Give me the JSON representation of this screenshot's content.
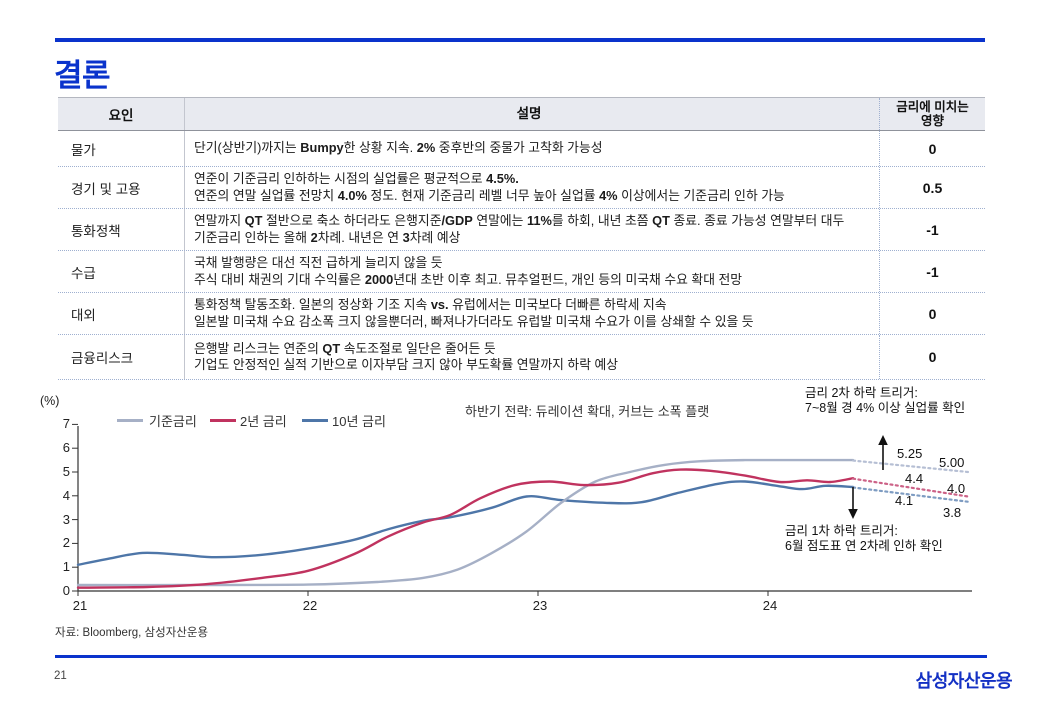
{
  "page": {
    "title": "결론",
    "page_number": "21",
    "logo_text": "삼성자산운용",
    "source": "자료: Bloomberg, 삼성자산운용",
    "accent_color": "#0a33cc"
  },
  "table": {
    "col_headers": {
      "factor": "요인",
      "description": "설명",
      "effect_line1": "금리에 미치는",
      "effect_line2": "영향"
    },
    "rows": [
      {
        "factor": "물가",
        "lines": [
          "단기(상반기)까지는 **Bumpy**한 상황 지속. **2%** 중후반의 중물가 고착화 가능성"
        ],
        "effect": "0"
      },
      {
        "factor": "경기 및 고용",
        "lines": [
          "연준이 기준금리 인하하는 시점의 실업률은 평균적으로 **4.5%.**",
          "연준의 연말 실업률 전망치 **4.0%** 정도.  현재 기준금리 레벨 너무 높아 실업률 **4%** 이상에서는 기준금리 인하 가능"
        ],
        "effect": "0.5"
      },
      {
        "factor": "통화정책",
        "lines": [
          "연말까지 **QT** 절반으로 축소 하더라도 은행지준**/GDP** 연말에는 **11%**를 하회, 내년 초쯤 **QT** 종료. 종료 가능성 연말부터 대두",
          "기준금리 인하는 올해 **2**차례. 내년은 연 **3**차례 예상"
        ],
        "effect": "-1"
      },
      {
        "factor": "수급",
        "lines": [
          "국채 발행량은 대선 직전 급하게 늘리지 않을 듯",
          "주식 대비 채권의 기대 수익률은 **2000**년대 초반 이후 최고. 뮤추얼펀드, 개인 등의 미국채 수요 확대 전망"
        ],
        "effect": "-1"
      },
      {
        "factor": "대외",
        "lines": [
          "통화정책 탈동조화. 일본의 정상화 기조 지속 **vs.** 유럽에서는 미국보다 더빠른 하락세 지속",
          "일본발 미국채 수요 감소폭 크지 않을뿐더러, 빠져나가더라도 유럽발 미국채 수요가 이를 상쇄할 수 있을 듯"
        ],
        "effect": "0"
      },
      {
        "factor": "금융리스크",
        "lines": [
          "은행발 리스크는 연준의 **QT** 속도조절로 일단은 줄어든 듯",
          "기업도 안정적인 실적 기반으로 이자부담 크지 않아 부도확률 연말까지 하락 예상"
        ],
        "effect": "0"
      }
    ]
  },
  "chart_data": {
    "type": "line",
    "unit_label": "(%)",
    "note": "하반기 전략: 듀레이션 확대, 커브는 소폭 플랫",
    "ylim": [
      0,
      7
    ],
    "y_ticks": [
      "0",
      "1",
      "2",
      "3",
      "4",
      "5",
      "6",
      "7"
    ],
    "x_ticks": [
      "21",
      "22",
      "23",
      "24"
    ],
    "legend_position": "top-left",
    "series": [
      {
        "name": "기준금리",
        "color": "#a6b0c6",
        "proj_color": "#b6bfd4",
        "points": [
          [
            21.0,
            0.25
          ],
          [
            21.5,
            0.25
          ],
          [
            22.0,
            0.27
          ],
          [
            22.3,
            0.38
          ],
          [
            22.5,
            0.55
          ],
          [
            22.65,
            0.9
          ],
          [
            22.8,
            1.6
          ],
          [
            22.95,
            2.5
          ],
          [
            23.1,
            3.7
          ],
          [
            23.25,
            4.6
          ],
          [
            23.4,
            5.0
          ],
          [
            23.55,
            5.3
          ],
          [
            23.7,
            5.45
          ],
          [
            23.9,
            5.5
          ],
          [
            24.1,
            5.5
          ],
          [
            24.37,
            5.5
          ]
        ],
        "projection": [
          [
            24.37,
            5.48
          ],
          [
            24.87,
            5.0
          ]
        ],
        "label_mid": "5.25",
        "label_end": "5.00"
      },
      {
        "name": "2년 금리",
        "color": "#c0335f",
        "proj_color": "#cc6287",
        "points": [
          [
            21.0,
            0.14
          ],
          [
            21.3,
            0.17
          ],
          [
            21.55,
            0.28
          ],
          [
            21.8,
            0.55
          ],
          [
            22.0,
            0.85
          ],
          [
            22.2,
            1.55
          ],
          [
            22.35,
            2.3
          ],
          [
            22.5,
            2.88
          ],
          [
            22.62,
            3.2
          ],
          [
            22.75,
            3.9
          ],
          [
            22.9,
            4.45
          ],
          [
            23.05,
            4.6
          ],
          [
            23.2,
            4.45
          ],
          [
            23.35,
            4.55
          ],
          [
            23.5,
            4.95
          ],
          [
            23.62,
            5.1
          ],
          [
            23.75,
            5.05
          ],
          [
            23.9,
            4.85
          ],
          [
            24.05,
            4.58
          ],
          [
            24.17,
            4.65
          ],
          [
            24.27,
            4.58
          ],
          [
            24.37,
            4.74
          ]
        ],
        "projection": [
          [
            24.37,
            4.72
          ],
          [
            24.87,
            3.97
          ]
        ],
        "label_mid": "4.4",
        "label_end": "4.0"
      },
      {
        "name": "10년 금리",
        "color": "#4e76a8",
        "proj_color": "#7e9cc2",
        "points": [
          [
            21.0,
            1.1
          ],
          [
            21.12,
            1.33
          ],
          [
            21.28,
            1.6
          ],
          [
            21.45,
            1.52
          ],
          [
            21.6,
            1.42
          ],
          [
            21.8,
            1.52
          ],
          [
            22.0,
            1.78
          ],
          [
            22.2,
            2.15
          ],
          [
            22.35,
            2.6
          ],
          [
            22.5,
            2.95
          ],
          [
            22.62,
            3.1
          ],
          [
            22.8,
            3.5
          ],
          [
            22.95,
            3.97
          ],
          [
            23.1,
            3.82
          ],
          [
            23.3,
            3.7
          ],
          [
            23.45,
            3.73
          ],
          [
            23.6,
            4.1
          ],
          [
            23.78,
            4.5
          ],
          [
            23.9,
            4.6
          ],
          [
            24.05,
            4.4
          ],
          [
            24.15,
            4.28
          ],
          [
            24.25,
            4.42
          ],
          [
            24.37,
            4.37
          ]
        ],
        "projection": [
          [
            24.37,
            4.35
          ],
          [
            24.87,
            3.75
          ]
        ],
        "label_mid": "4.1",
        "label_end": "3.8"
      }
    ],
    "annotations": {
      "second_trigger": {
        "lines": [
          "금리 2차 하락 트리거:",
          "7~8월 경 4% 이상 실업률 확인"
        ],
        "arrow": "up"
      },
      "first_trigger": {
        "lines": [
          "금리 1차 하락 트리거:",
          "6월 점도표 연 2차례 인하 확인"
        ],
        "arrow": "down"
      }
    }
  }
}
